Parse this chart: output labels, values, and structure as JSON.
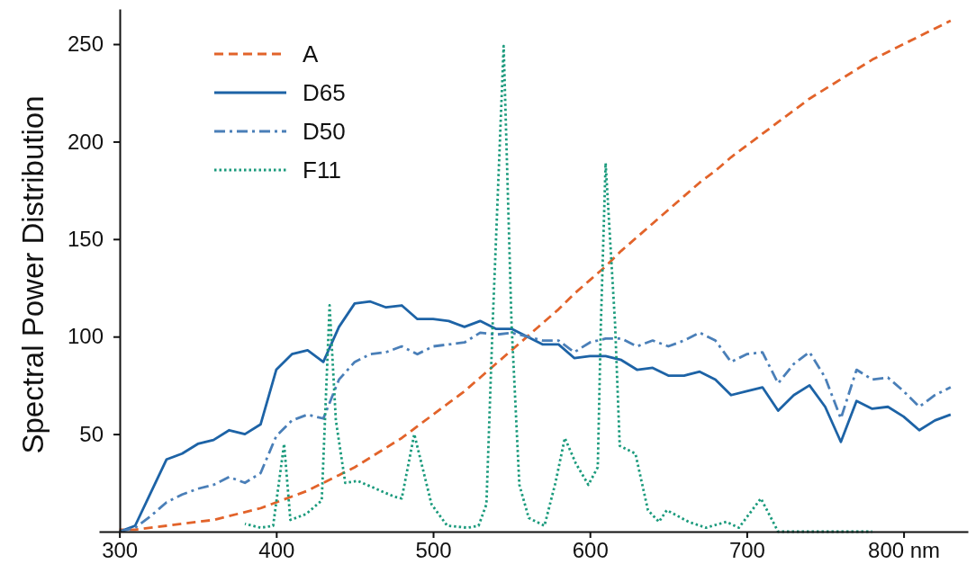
{
  "chart_data": {
    "type": "line",
    "ylabel": "Spectral Power Distribution",
    "x": [
      300,
      310,
      320,
      330,
      340,
      350,
      360,
      370,
      380,
      390,
      400,
      410,
      420,
      430,
      440,
      450,
      460,
      470,
      480,
      490,
      500,
      510,
      520,
      530,
      540,
      550,
      560,
      570,
      580,
      590,
      600,
      610,
      620,
      630,
      640,
      650,
      660,
      670,
      680,
      690,
      700,
      710,
      720,
      730,
      740,
      750,
      760,
      770,
      780,
      790,
      800,
      810,
      820,
      830
    ],
    "xlim": [
      287,
      841
    ],
    "xticks": [
      300,
      400,
      500,
      600,
      700,
      {
        "value": 800,
        "label": "800 nm"
      }
    ],
    "ylim": [
      0,
      268
    ],
    "yticks": [
      50,
      100,
      150,
      200,
      250
    ],
    "grid": false,
    "legend": "top left",
    "marker": "none",
    "series": [
      {
        "name": "A",
        "color": "#e2632a",
        "line_style": "dashed",
        "values": [
          1,
          1,
          2,
          3,
          4,
          5,
          6,
          8,
          10,
          12,
          15,
          18,
          21,
          25,
          29,
          33,
          38,
          43,
          48,
          54,
          60,
          66,
          72,
          79,
          86,
          93,
          100,
          107,
          114,
          122,
          129,
          136,
          144,
          151,
          158,
          165,
          172,
          179,
          185,
          192,
          198,
          204,
          210,
          216,
          222,
          227,
          232,
          237,
          242,
          246,
          250,
          254,
          258,
          262
        ]
      },
      {
        "name": "D65",
        "color": "#1d63a6",
        "line_style": "solid",
        "values": [
          0,
          3,
          20,
          37,
          40,
          45,
          47,
          52,
          50,
          55,
          83,
          91,
          93,
          87,
          105,
          117,
          118,
          115,
          116,
          109,
          109,
          108,
          105,
          108,
          104,
          104,
          100,
          96,
          96,
          89,
          90,
          90,
          88,
          83,
          84,
          80,
          80,
          82,
          78,
          70,
          72,
          74,
          62,
          70,
          75,
          64,
          46,
          67,
          63,
          64,
          59,
          52,
          57,
          60
        ]
      },
      {
        "name": "D50",
        "color": "#4a7fb8",
        "line_style": "dashdot",
        "values": [
          0,
          2,
          8,
          15,
          19,
          22,
          24,
          28,
          25,
          30,
          49,
          57,
          60,
          58,
          78,
          87,
          91,
          92,
          95,
          91,
          95,
          96,
          97,
          102,
          101,
          102,
          100,
          98,
          98,
          92,
          97,
          99,
          99,
          95,
          98,
          95,
          98,
          102,
          98,
          87,
          91,
          92,
          76,
          86,
          92,
          79,
          58,
          83,
          78,
          79,
          72,
          64,
          70,
          74
        ]
      },
      {
        "name": "F11",
        "color": "#1a9a7c",
        "line_style": "dotted",
        "x": [
          380,
          390,
          398,
          405,
          409,
          419,
          429,
          434,
          438,
          444,
          452,
          475,
          480,
          488,
          499,
          509,
          522,
          529,
          534,
          538,
          545,
          550,
          555,
          561,
          571,
          578,
          584,
          591,
          599,
          605,
          607,
          610,
          616,
          619,
          629,
          637,
          644,
          649,
          663,
          674,
          687,
          695,
          709,
          720,
          780
        ],
        "values": [
          4,
          2,
          3,
          45,
          6,
          9,
          16,
          116,
          57,
          25,
          26,
          18,
          17,
          50,
          14,
          3,
          2,
          3,
          14,
          107,
          249,
          107,
          24,
          7,
          3,
          25,
          48,
          35,
          24,
          33,
          107,
          189,
          107,
          44,
          40,
          11,
          5,
          11,
          5,
          2,
          5,
          2,
          17,
          0,
          0
        ]
      }
    ]
  }
}
